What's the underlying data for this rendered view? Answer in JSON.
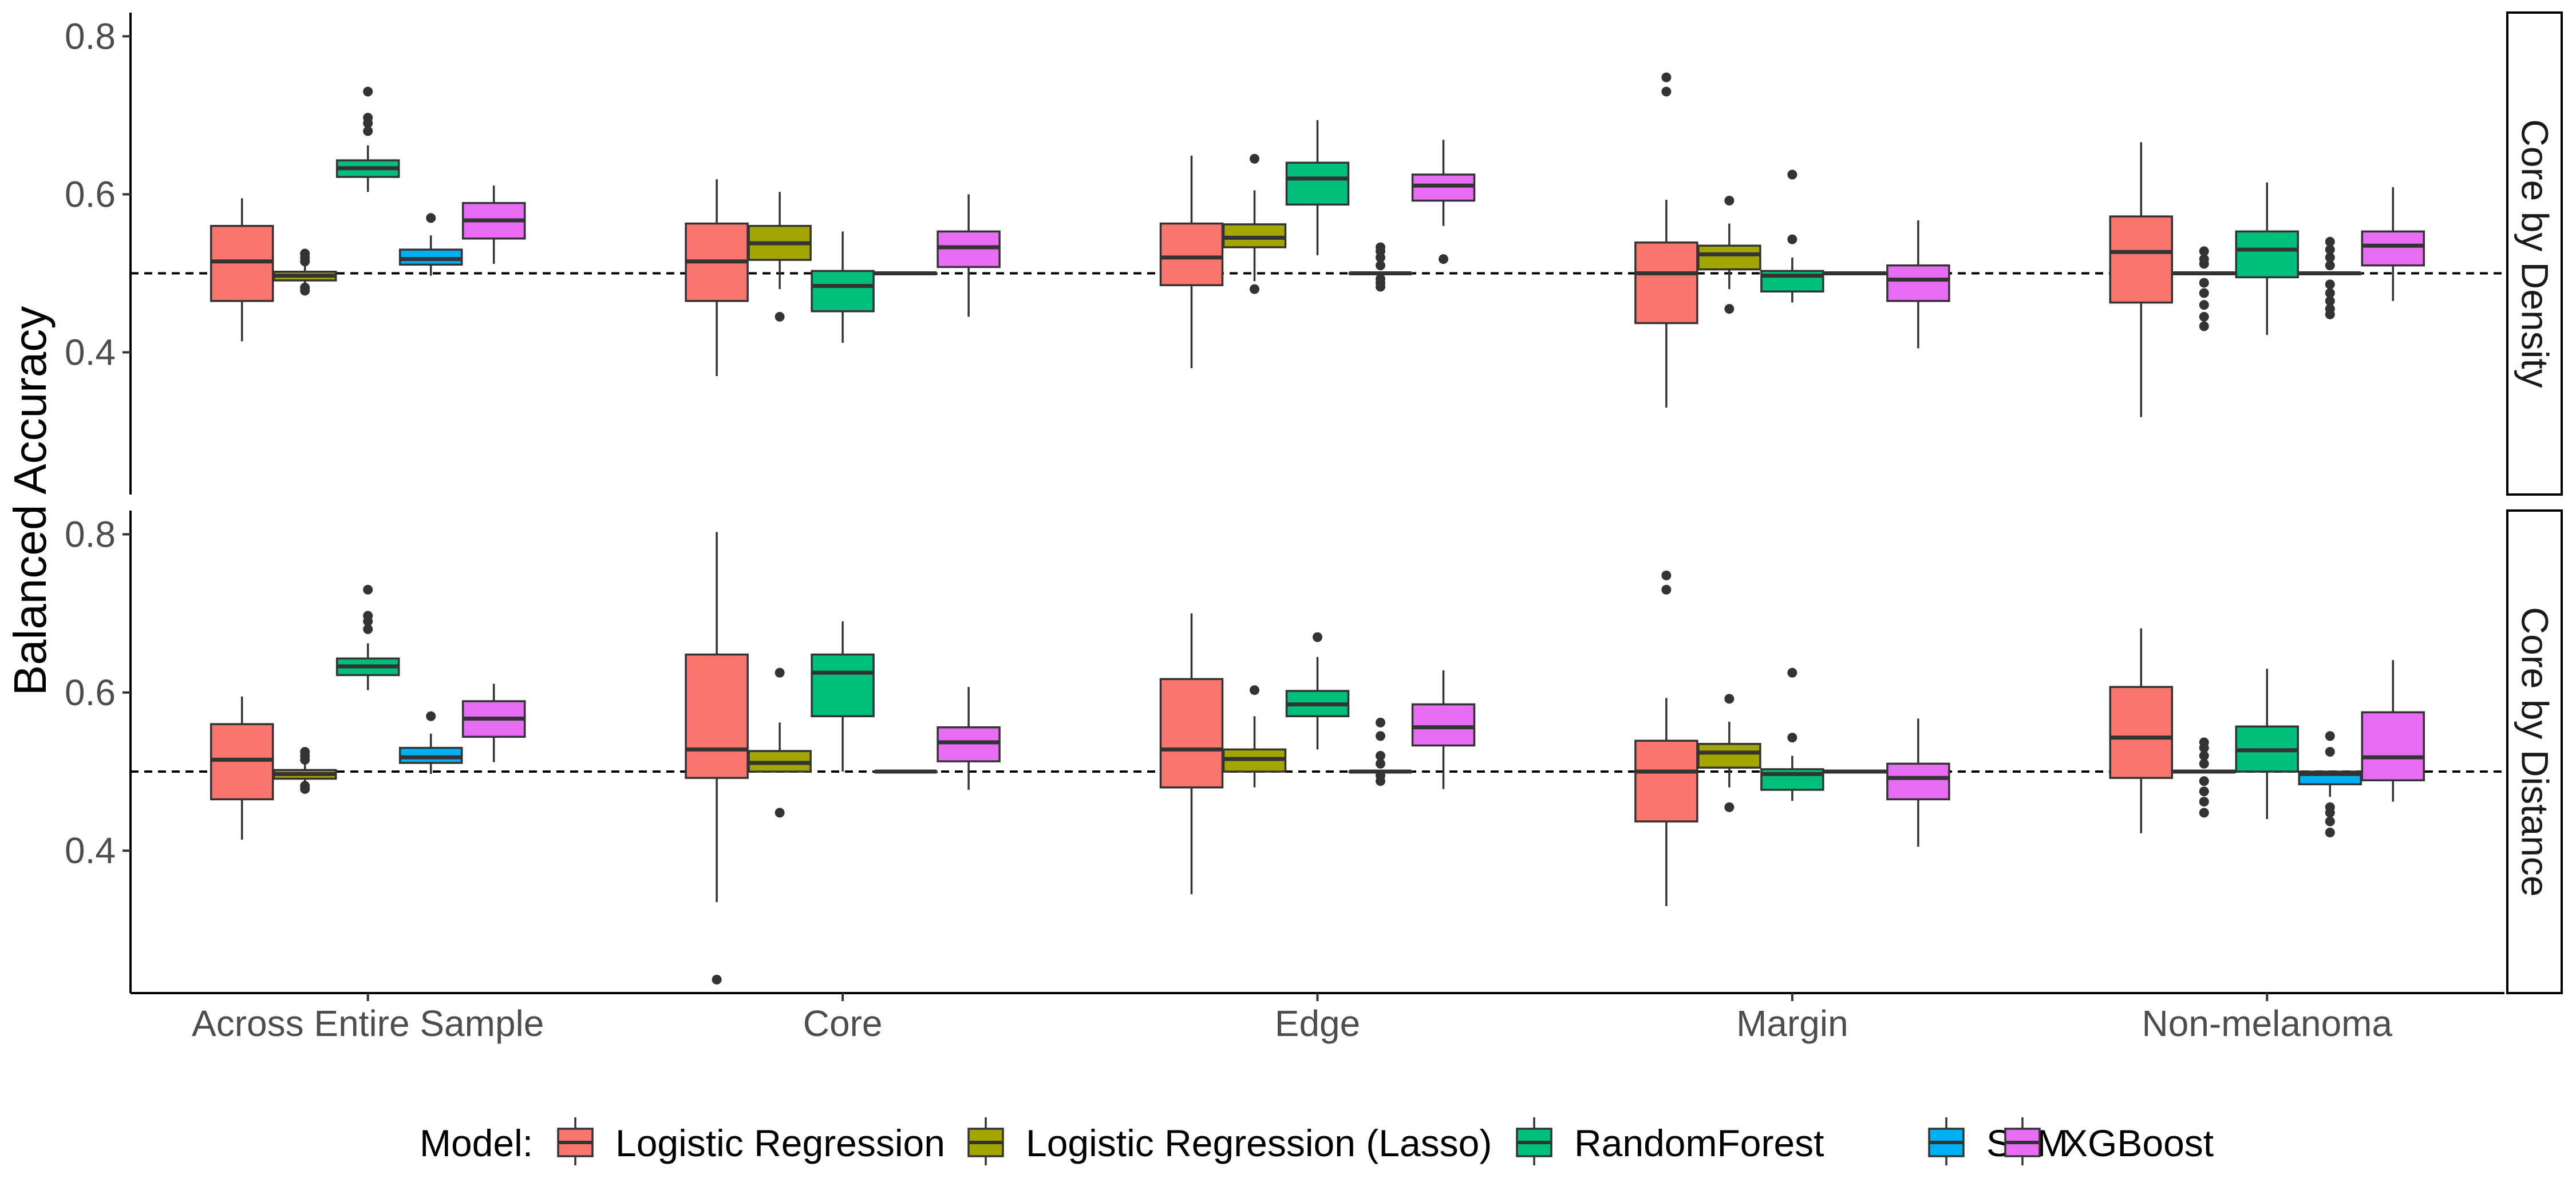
{
  "chart_data": {
    "type": "boxplot",
    "ylabel": "Balanced Accuracy",
    "xlabel": "",
    "categories": [
      "Across Entire Sample",
      "Core",
      "Edge",
      "Margin",
      "Non-melanoma"
    ],
    "ylim": [
      0.22,
      0.83
    ],
    "yticks": [
      0.4,
      0.6,
      0.8
    ],
    "yticklabels": [
      "0.4",
      "0.6",
      "0.8"
    ],
    "reference_line": 0.5,
    "grid": false,
    "legend": {
      "title": "Model:",
      "placement": "bottom",
      "entries": [
        {
          "name": "Logistic Regression",
          "color": "#F8766D"
        },
        {
          "name": "Logistic Regression (Lasso)",
          "color": "#A3A500"
        },
        {
          "name": "RandomForest",
          "color": "#00BF7D"
        },
        {
          "name": "SVM",
          "color": "#00B0F6"
        },
        {
          "name": "XGBoost",
          "color": "#E76BF3"
        }
      ]
    },
    "panels": [
      {
        "strip": "Core by Density",
        "boxes": {
          "Across Entire Sample": [
            {
              "lw": 0.414,
              "q1": 0.465,
              "med": 0.515,
              "q3": 0.56,
              "uw": 0.595,
              "out": []
            },
            {
              "lw": 0.485,
              "q1": 0.491,
              "med": 0.497,
              "q3": 0.502,
              "uw": 0.511,
              "out": [
                0.478,
                0.482,
                0.515,
                0.52,
                0.525
              ]
            },
            {
              "lw": 0.603,
              "q1": 0.622,
              "med": 0.633,
              "q3": 0.643,
              "uw": 0.662,
              "out": [
                0.68,
                0.69,
                0.697,
                0.73
              ]
            },
            {
              "lw": 0.497,
              "q1": 0.511,
              "med": 0.518,
              "q3": 0.53,
              "uw": 0.548,
              "out": [
                0.57
              ]
            },
            {
              "lw": 0.512,
              "q1": 0.544,
              "med": 0.567,
              "q3": 0.589,
              "uw": 0.611,
              "out": []
            }
          ],
          "Core": [
            {
              "lw": 0.37,
              "q1": 0.465,
              "med": 0.515,
              "q3": 0.563,
              "uw": 0.619,
              "out": []
            },
            {
              "lw": 0.48,
              "q1": 0.517,
              "med": 0.538,
              "q3": 0.56,
              "uw": 0.603,
              "out": [
                0.445
              ]
            },
            {
              "lw": 0.412,
              "q1": 0.452,
              "med": 0.484,
              "q3": 0.503,
              "uw": 0.553,
              "out": []
            },
            {
              "lw": 0.5,
              "q1": 0.5,
              "med": 0.5,
              "q3": 0.5,
              "uw": 0.5,
              "out": []
            },
            {
              "lw": 0.445,
              "q1": 0.508,
              "med": 0.533,
              "q3": 0.553,
              "uw": 0.6,
              "out": []
            }
          ],
          "Edge": [
            {
              "lw": 0.38,
              "q1": 0.485,
              "med": 0.52,
              "q3": 0.563,
              "uw": 0.649,
              "out": []
            },
            {
              "lw": 0.49,
              "q1": 0.533,
              "med": 0.545,
              "q3": 0.562,
              "uw": 0.605,
              "out": [
                0.48,
                0.645
              ]
            },
            {
              "lw": 0.523,
              "q1": 0.587,
              "med": 0.62,
              "q3": 0.64,
              "uw": 0.694,
              "out": []
            },
            {
              "lw": 0.5,
              "q1": 0.5,
              "med": 0.5,
              "q3": 0.5,
              "uw": 0.5,
              "out": [
                0.483,
                0.488,
                0.493,
                0.51,
                0.52,
                0.528,
                0.533
              ]
            },
            {
              "lw": 0.56,
              "q1": 0.592,
              "med": 0.611,
              "q3": 0.625,
              "uw": 0.669,
              "out": [
                0.518
              ]
            }
          ],
          "Margin": [
            {
              "lw": 0.33,
              "q1": 0.437,
              "med": 0.5,
              "q3": 0.539,
              "uw": 0.593,
              "out": [
                0.73,
                0.748
              ]
            },
            {
              "lw": 0.48,
              "q1": 0.505,
              "med": 0.524,
              "q3": 0.535,
              "uw": 0.563,
              "out": [
                0.455,
                0.592
              ]
            },
            {
              "lw": 0.463,
              "q1": 0.477,
              "med": 0.497,
              "q3": 0.503,
              "uw": 0.52,
              "out": [
                0.543,
                0.625
              ]
            },
            {
              "lw": 0.5,
              "q1": 0.5,
              "med": 0.5,
              "q3": 0.5,
              "uw": 0.5,
              "out": []
            },
            {
              "lw": 0.405,
              "q1": 0.465,
              "med": 0.492,
              "q3": 0.51,
              "uw": 0.567,
              "out": []
            }
          ],
          "Non-melanoma": [
            {
              "lw": 0.318,
              "q1": 0.463,
              "med": 0.527,
              "q3": 0.572,
              "uw": 0.666,
              "out": []
            },
            {
              "lw": 0.5,
              "q1": 0.5,
              "med": 0.5,
              "q3": 0.5,
              "uw": 0.5,
              "out": [
                0.433,
                0.445,
                0.46,
                0.475,
                0.488,
                0.512,
                0.518,
                0.528
              ]
            },
            {
              "lw": 0.422,
              "q1": 0.495,
              "med": 0.53,
              "q3": 0.553,
              "uw": 0.615,
              "out": []
            },
            {
              "lw": 0.5,
              "q1": 0.5,
              "med": 0.5,
              "q3": 0.5,
              "uw": 0.5,
              "out": [
                0.448,
                0.455,
                0.465,
                0.475,
                0.486,
                0.51,
                0.52,
                0.53,
                0.54
              ]
            },
            {
              "lw": 0.465,
              "q1": 0.51,
              "med": 0.535,
              "q3": 0.553,
              "uw": 0.609,
              "out": []
            }
          ]
        }
      },
      {
        "strip": "Core by Distance",
        "boxes": {
          "Across Entire Sample": [
            {
              "lw": 0.414,
              "q1": 0.465,
              "med": 0.515,
              "q3": 0.56,
              "uw": 0.595,
              "out": []
            },
            {
              "lw": 0.485,
              "q1": 0.491,
              "med": 0.497,
              "q3": 0.502,
              "uw": 0.511,
              "out": [
                0.478,
                0.482,
                0.515,
                0.52,
                0.525
              ]
            },
            {
              "lw": 0.603,
              "q1": 0.622,
              "med": 0.633,
              "q3": 0.643,
              "uw": 0.662,
              "out": [
                0.68,
                0.69,
                0.697,
                0.73
              ]
            },
            {
              "lw": 0.497,
              "q1": 0.511,
              "med": 0.518,
              "q3": 0.53,
              "uw": 0.548,
              "out": [
                0.57
              ]
            },
            {
              "lw": 0.512,
              "q1": 0.544,
              "med": 0.567,
              "q3": 0.589,
              "uw": 0.611,
              "out": []
            }
          ],
          "Core": [
            {
              "lw": 0.335,
              "q1": 0.492,
              "med": 0.528,
              "q3": 0.648,
              "uw": 0.803,
              "out": [
                0.237
              ]
            },
            {
              "lw": 0.5,
              "q1": 0.5,
              "med": 0.511,
              "q3": 0.526,
              "uw": 0.562,
              "out": [
                0.448,
                0.625
              ]
            },
            {
              "lw": 0.5,
              "q1": 0.57,
              "med": 0.625,
              "q3": 0.648,
              "uw": 0.69,
              "out": []
            },
            {
              "lw": 0.5,
              "q1": 0.5,
              "med": 0.5,
              "q3": 0.5,
              "uw": 0.5,
              "out": []
            },
            {
              "lw": 0.477,
              "q1": 0.513,
              "med": 0.537,
              "q3": 0.556,
              "uw": 0.607,
              "out": []
            }
          ],
          "Edge": [
            {
              "lw": 0.345,
              "q1": 0.48,
              "med": 0.528,
              "q3": 0.617,
              "uw": 0.7,
              "out": []
            },
            {
              "lw": 0.48,
              "q1": 0.5,
              "med": 0.516,
              "q3": 0.528,
              "uw": 0.57,
              "out": [
                0.603
              ]
            },
            {
              "lw": 0.528,
              "q1": 0.57,
              "med": 0.585,
              "q3": 0.602,
              "uw": 0.645,
              "out": [
                0.67
              ]
            },
            {
              "lw": 0.5,
              "q1": 0.5,
              "med": 0.5,
              "q3": 0.5,
              "uw": 0.5,
              "out": [
                0.488,
                0.495,
                0.51,
                0.52,
                0.545,
                0.562
              ]
            },
            {
              "lw": 0.478,
              "q1": 0.533,
              "med": 0.556,
              "q3": 0.585,
              "uw": 0.628,
              "out": []
            }
          ],
          "Margin": [
            {
              "lw": 0.33,
              "q1": 0.437,
              "med": 0.5,
              "q3": 0.539,
              "uw": 0.593,
              "out": [
                0.73,
                0.748
              ]
            },
            {
              "lw": 0.48,
              "q1": 0.505,
              "med": 0.524,
              "q3": 0.535,
              "uw": 0.563,
              "out": [
                0.455,
                0.592
              ]
            },
            {
              "lw": 0.463,
              "q1": 0.477,
              "med": 0.497,
              "q3": 0.503,
              "uw": 0.52,
              "out": [
                0.543,
                0.625
              ]
            },
            {
              "lw": 0.5,
              "q1": 0.5,
              "med": 0.5,
              "q3": 0.5,
              "uw": 0.5,
              "out": []
            },
            {
              "lw": 0.405,
              "q1": 0.465,
              "med": 0.492,
              "q3": 0.51,
              "uw": 0.567,
              "out": []
            }
          ],
          "Non-melanoma": [
            {
              "lw": 0.422,
              "q1": 0.492,
              "med": 0.543,
              "q3": 0.607,
              "uw": 0.681,
              "out": []
            },
            {
              "lw": 0.5,
              "q1": 0.5,
              "med": 0.5,
              "q3": 0.5,
              "uw": 0.5,
              "out": [
                0.448,
                0.462,
                0.475,
                0.488,
                0.51,
                0.52,
                0.53,
                0.537
              ]
            },
            {
              "lw": 0.44,
              "q1": 0.5,
              "med": 0.527,
              "q3": 0.557,
              "uw": 0.63,
              "out": []
            },
            {
              "lw": 0.468,
              "q1": 0.484,
              "med": 0.497,
              "q3": 0.5,
              "uw": 0.5,
              "out": [
                0.423,
                0.437,
                0.448,
                0.455,
                0.525,
                0.545
              ]
            },
            {
              "lw": 0.462,
              "q1": 0.489,
              "med": 0.518,
              "q3": 0.575,
              "uw": 0.641,
              "out": []
            }
          ]
        }
      }
    ]
  }
}
